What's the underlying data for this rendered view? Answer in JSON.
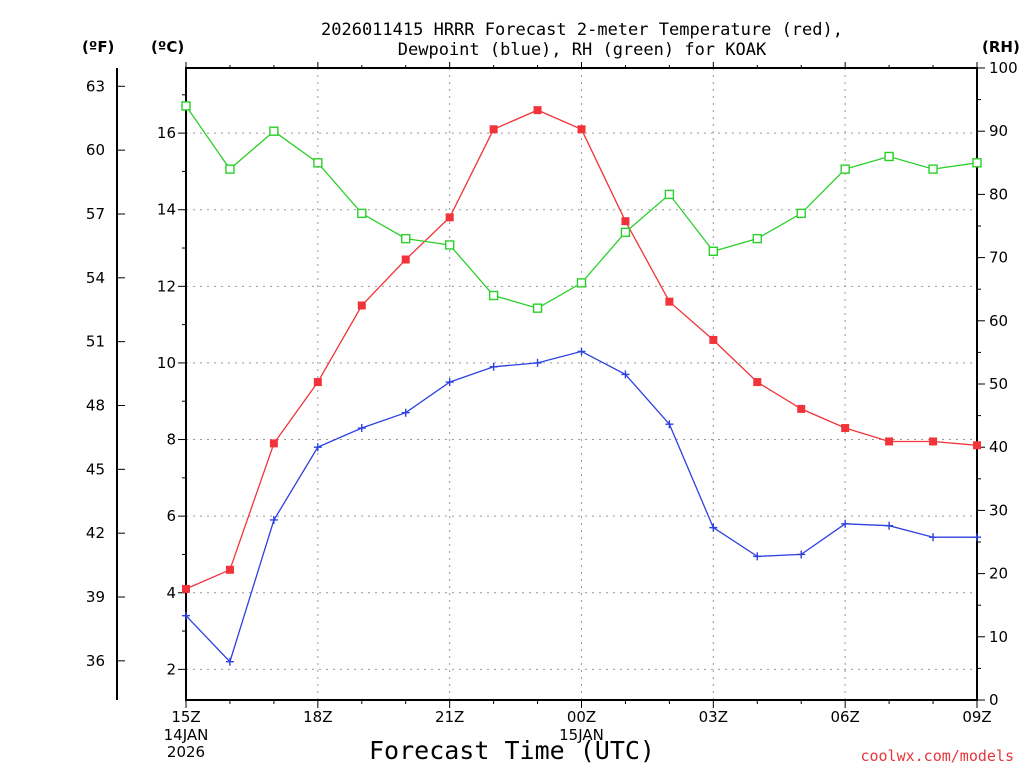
{
  "chart_data": {
    "type": "line",
    "title_line1": "2026011415 HRRR Forecast 2-meter Temperature (red),",
    "title_line2": "Dewpoint (blue), RH (green) for KOAK",
    "xlabel": "Forecast Time (UTC)",
    "credit": "coolwx.com/models",
    "units": {
      "fahrenheit": "(ºF)",
      "celsius": "(ºC)",
      "rh": "(RH)"
    },
    "x_ticks": [
      {
        "hour": 0,
        "label": "15Z",
        "date": "14JAN",
        "year": "2026"
      },
      {
        "hour": 3,
        "label": "18Z"
      },
      {
        "hour": 6,
        "label": "21Z"
      },
      {
        "hour": 9,
        "label": "00Z",
        "date": "15JAN"
      },
      {
        "hour": 12,
        "label": "03Z"
      },
      {
        "hour": 15,
        "label": "06Z"
      },
      {
        "hour": 18,
        "label": "09Z"
      }
    ],
    "xlim": [
      0,
      18
    ],
    "ylim_celsius": [
      1.2,
      17.7
    ],
    "ylim_rh": [
      0,
      100
    ],
    "celsius_ticks": [
      "2",
      "4",
      "6",
      "8",
      "10",
      "12",
      "14",
      "16"
    ],
    "fahrenheit_ticks": [
      "36",
      "39",
      "42",
      "45",
      "48",
      "51",
      "54",
      "57",
      "60",
      "63"
    ],
    "rh_ticks": [
      "0",
      "10",
      "20",
      "30",
      "40",
      "50",
      "60",
      "70",
      "80",
      "90",
      "100"
    ],
    "hours": [
      0,
      1,
      2,
      3,
      4,
      5,
      6,
      7,
      8,
      9,
      10,
      11,
      12,
      13,
      14,
      15,
      16,
      17,
      18
    ],
    "series": [
      {
        "name": "Temperature",
        "axis": "celsius",
        "color": "#f0343a",
        "marker": "filled-square",
        "values": [
          4.1,
          4.6,
          7.9,
          9.5,
          11.5,
          12.7,
          13.8,
          16.1,
          16.6,
          16.1,
          13.7,
          11.6,
          10.6,
          9.5,
          8.8,
          8.3,
          7.95,
          7.95,
          7.85
        ]
      },
      {
        "name": "Dewpoint",
        "axis": "celsius",
        "color": "#2c41e0",
        "marker": "plus",
        "values": [
          3.4,
          2.2,
          5.9,
          7.8,
          8.3,
          8.7,
          9.5,
          9.9,
          10.0,
          10.3,
          9.7,
          8.4,
          5.7,
          4.95,
          5.0,
          5.8,
          5.75,
          5.45,
          5.45
        ]
      },
      {
        "name": "RH",
        "axis": "rh",
        "color": "#2ad02a",
        "marker": "open-square",
        "values": [
          94,
          84,
          90,
          85,
          77,
          73,
          72,
          64,
          62,
          66,
          74,
          80,
          71,
          73,
          77,
          84,
          86,
          84,
          85
        ]
      }
    ]
  }
}
